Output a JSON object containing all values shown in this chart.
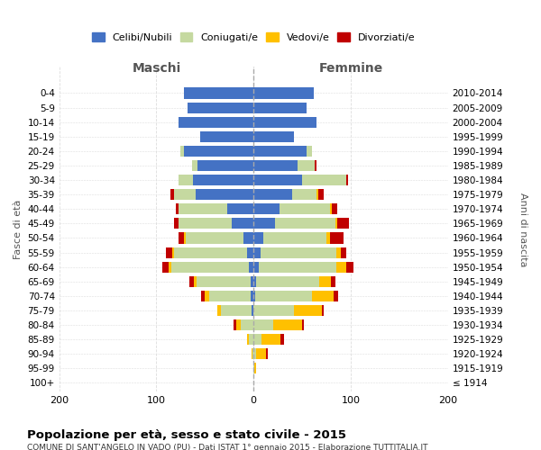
{
  "age_groups": [
    "100+",
    "95-99",
    "90-94",
    "85-89",
    "80-84",
    "75-79",
    "70-74",
    "65-69",
    "60-64",
    "55-59",
    "50-54",
    "45-49",
    "40-44",
    "35-39",
    "30-34",
    "25-29",
    "20-24",
    "15-19",
    "10-14",
    "5-9",
    "0-4"
  ],
  "birth_years": [
    "≤ 1914",
    "1915-1919",
    "1920-1924",
    "1925-1929",
    "1930-1934",
    "1935-1939",
    "1940-1944",
    "1945-1949",
    "1950-1954",
    "1955-1959",
    "1960-1964",
    "1965-1969",
    "1970-1974",
    "1975-1979",
    "1980-1984",
    "1985-1989",
    "1990-1994",
    "1995-1999",
    "2000-2004",
    "2005-2009",
    "2010-2014"
  ],
  "male": {
    "celibi": [
      0,
      0,
      0,
      0,
      0,
      2,
      3,
      3,
      5,
      7,
      10,
      22,
      27,
      60,
      62,
      58,
      72,
      55,
      77,
      68,
      72
    ],
    "coniugati": [
      0,
      0,
      1,
      5,
      13,
      32,
      43,
      56,
      80,
      75,
      60,
      55,
      50,
      22,
      15,
      5,
      3,
      0,
      0,
      0,
      0
    ],
    "vedovi": [
      0,
      0,
      1,
      2,
      5,
      3,
      4,
      2,
      2,
      2,
      2,
      0,
      0,
      0,
      0,
      0,
      0,
      0,
      0,
      0,
      0
    ],
    "divorziati": [
      0,
      0,
      0,
      0,
      3,
      0,
      4,
      5,
      7,
      6,
      5,
      5,
      3,
      4,
      0,
      0,
      0,
      0,
      0,
      0,
      0
    ]
  },
  "female": {
    "nubili": [
      0,
      0,
      0,
      0,
      0,
      0,
      2,
      3,
      5,
      7,
      10,
      22,
      27,
      40,
      50,
      45,
      55,
      42,
      65,
      55,
      62
    ],
    "coniugate": [
      0,
      1,
      3,
      8,
      20,
      42,
      58,
      65,
      80,
      78,
      65,
      62,
      52,
      25,
      45,
      18,
      5,
      0,
      0,
      0,
      0
    ],
    "vedove": [
      0,
      2,
      10,
      20,
      30,
      28,
      22,
      12,
      10,
      5,
      4,
      2,
      2,
      2,
      0,
      0,
      0,
      0,
      0,
      0,
      0
    ],
    "divorziate": [
      0,
      0,
      2,
      3,
      2,
      2,
      5,
      4,
      8,
      5,
      14,
      12,
      5,
      5,
      2,
      2,
      0,
      0,
      0,
      0,
      0
    ]
  },
  "colors": {
    "celibi": "#4472c4",
    "coniugati": "#c5d9a0",
    "vedovi": "#ffc000",
    "divorziati": "#c00000"
  },
  "title": "Popolazione per età, sesso e stato civile - 2015",
  "subtitle": "COMUNE DI SANT'ANGELO IN VADO (PU) - Dati ISTAT 1° gennaio 2015 - Elaborazione TUTTITALIA.IT",
  "xlim": 200,
  "background_color": "#ffffff",
  "grid_color": "#dddddd"
}
